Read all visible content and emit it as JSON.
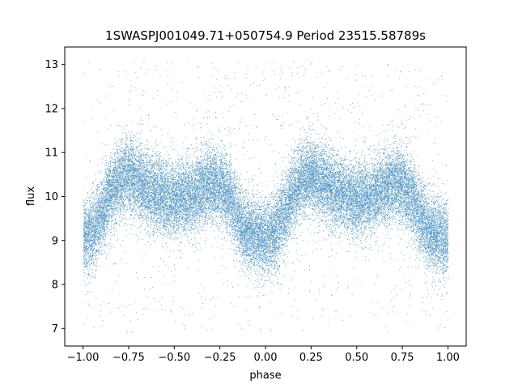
{
  "chart_data": {
    "type": "scatter",
    "title": "1SWASPJ001049.71+050754.9 Period 23515.58789s",
    "xlabel": "phase",
    "ylabel": "flux",
    "xlim": [
      -1.1,
      1.1
    ],
    "ylim": [
      6.6,
      13.4
    ],
    "xticks": [
      -1.0,
      -0.75,
      -0.5,
      -0.25,
      0.0,
      0.25,
      0.5,
      0.75,
      1.0
    ],
    "xtick_labels": [
      "−1.00",
      "−0.75",
      "−0.50",
      "−0.25",
      "0.00",
      "0.25",
      "0.50",
      "0.75",
      "1.00"
    ],
    "yticks": [
      7,
      8,
      9,
      10,
      11,
      12,
      13
    ],
    "ytick_labels": [
      "7",
      "8",
      "9",
      "10",
      "11",
      "12",
      "13"
    ],
    "grid": false,
    "legend": "none",
    "marker_color": "#1f77b4",
    "phase_range": [
      -1.0,
      1.0
    ],
    "light_curve_profile": {
      "phase": [
        0.0,
        0.05,
        0.1,
        0.15,
        0.2,
        0.25,
        0.3,
        0.35,
        0.4,
        0.45,
        0.5,
        0.55,
        0.6,
        0.65,
        0.7,
        0.75,
        0.8,
        0.85,
        0.9,
        0.95,
        1.0
      ],
      "flux": [
        9.05,
        9.2,
        9.6,
        10.1,
        10.4,
        10.5,
        10.35,
        10.2,
        10.1,
        10.0,
        9.95,
        10.0,
        10.05,
        10.2,
        10.3,
        10.25,
        10.0,
        9.5,
        9.2,
        9.1,
        9.05
      ]
    },
    "scatter_sigma": 0.42,
    "outlier_range": [
      6.9,
      13.1
    ],
    "n_points": 30000
  }
}
